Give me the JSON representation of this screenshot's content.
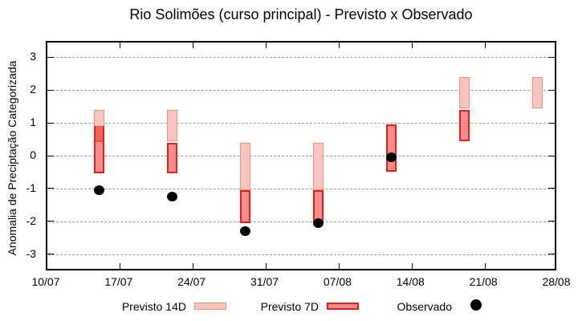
{
  "title": "Rio Solimões (curso principal) - Previsto x Observado",
  "y_axis_label": "Anomalia de Preciptação Categorizada",
  "legend": {
    "previsto14_label": "Previsto 14D",
    "previsto7_label": "Previsto 7D",
    "observado_label": "Observado"
  },
  "colors": {
    "previsto14_fill": "#f8c6bf",
    "previsto14_border": "#f0907e",
    "previsto7_fill": "#fb8c8c",
    "previsto7_border": "#e32020",
    "overlap_fill": "#f7625a",
    "overlap_line": "#e0564c",
    "observado": "#000000",
    "grid": "#999999",
    "axis": "#000000"
  },
  "chart_data": {
    "type": "bar",
    "subtype": "forecast-range-candles-with-observed-points",
    "title": "Rio Solimões (curso principal) - Previsto x Observado",
    "xlabel": "",
    "ylabel": "Anomalia de Preciptação Categorizada",
    "x_axis": {
      "tick_labels": [
        "10/07",
        "17/07",
        "24/07",
        "31/07",
        "07/08",
        "14/08",
        "21/08",
        "28/08"
      ],
      "tick_days": [
        0,
        7,
        14,
        21,
        28,
        35,
        42,
        49
      ],
      "range_days": [
        0,
        49
      ]
    },
    "y_axis": {
      "ticks": [
        -3,
        -2,
        -1,
        0,
        1,
        2,
        3
      ],
      "ylim": [
        -3.5,
        3.5
      ],
      "grid": "dashed"
    },
    "legend_position": "bottom-outside",
    "series_names": [
      "Previsto 14D",
      "Previsto 7D",
      "Observado"
    ],
    "bars": [
      {
        "date": "15/07",
        "day": 5,
        "previsto14": [
          0.5,
          1.45
        ],
        "previsto7": [
          -0.5,
          0.95
        ],
        "observado": -1.0
      },
      {
        "date": "22/07",
        "day": 12,
        "previsto14": [
          0.5,
          1.45
        ],
        "previsto7": [
          -0.5,
          0.45
        ],
        "observado": -1.2
      },
      {
        "date": "29/07",
        "day": 19,
        "previsto14": [
          -1.0,
          0.45
        ],
        "previsto7": [
          -2.0,
          -1.0
        ],
        "observado": -2.25
      },
      {
        "date": "05/08",
        "day": 26,
        "previsto14": [
          -1.0,
          0.45
        ],
        "previsto7": [
          -2.0,
          -1.0
        ],
        "observado": -2.0
      },
      {
        "date": "12/08",
        "day": 33,
        "previsto14": null,
        "previsto7": [
          -0.45,
          1.0
        ],
        "observado": 0.0
      },
      {
        "date": "19/08",
        "day": 40,
        "previsto14": [
          1.5,
          2.45
        ],
        "previsto7": [
          0.5,
          1.45
        ],
        "observado": null
      },
      {
        "date": "26/08",
        "day": 47,
        "previsto14": [
          1.5,
          2.45
        ],
        "previsto7": null,
        "observado": null
      }
    ]
  }
}
